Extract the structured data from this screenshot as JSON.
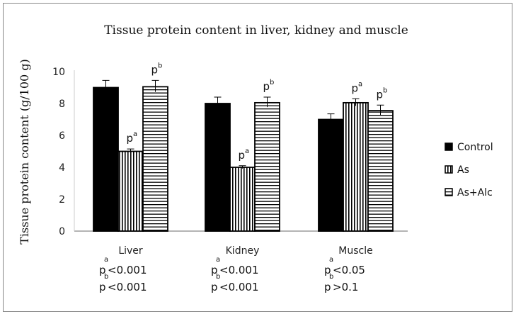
{
  "chart_data": {
    "type": "bar",
    "title": "Tissue protein content in liver,  kidney and muscle",
    "ylabel": "Tissue protein content (g/100 g)",
    "xlabel": "",
    "ylim": [
      0,
      10
    ],
    "yticks": [
      "0",
      "2",
      "4",
      "6",
      "8",
      "10"
    ],
    "grid": false,
    "legend_position": "right",
    "categories": [
      "Liver",
      "Kidney",
      "Muscle"
    ],
    "series": [
      {
        "name": "Control",
        "pattern": "solid",
        "values": [
          9.0,
          8.0,
          7.0
        ],
        "error_upper": [
          9.45,
          8.4,
          7.35
        ],
        "labels": [
          "",
          "",
          ""
        ]
      },
      {
        "name": "As",
        "pattern": "vertical-stripes",
        "values": [
          5.0,
          4.0,
          8.05
        ],
        "error_upper": [
          5.15,
          4.1,
          8.3
        ],
        "labels": [
          "pa",
          "pa",
          "pa"
        ]
      },
      {
        "name": "As+Alc",
        "pattern": "horizontal-stripes",
        "values": [
          9.05,
          8.05,
          7.55
        ],
        "error_upper": [
          9.45,
          8.4,
          7.9
        ],
        "labels": [
          "pb",
          "pb",
          "pb"
        ]
      }
    ],
    "annotations": [
      {
        "category": "Liver",
        "line_a": "<0.001",
        "line_b": "<0.001"
      },
      {
        "category": "Kidney",
        "line_a": "<0.001",
        "line_b": "<0.001"
      },
      {
        "category": "Muscle",
        "line_a": "<0.05",
        "line_b": ">0.1"
      }
    ],
    "colors": {
      "bar": "#000000",
      "fill": "#ffffff"
    }
  }
}
